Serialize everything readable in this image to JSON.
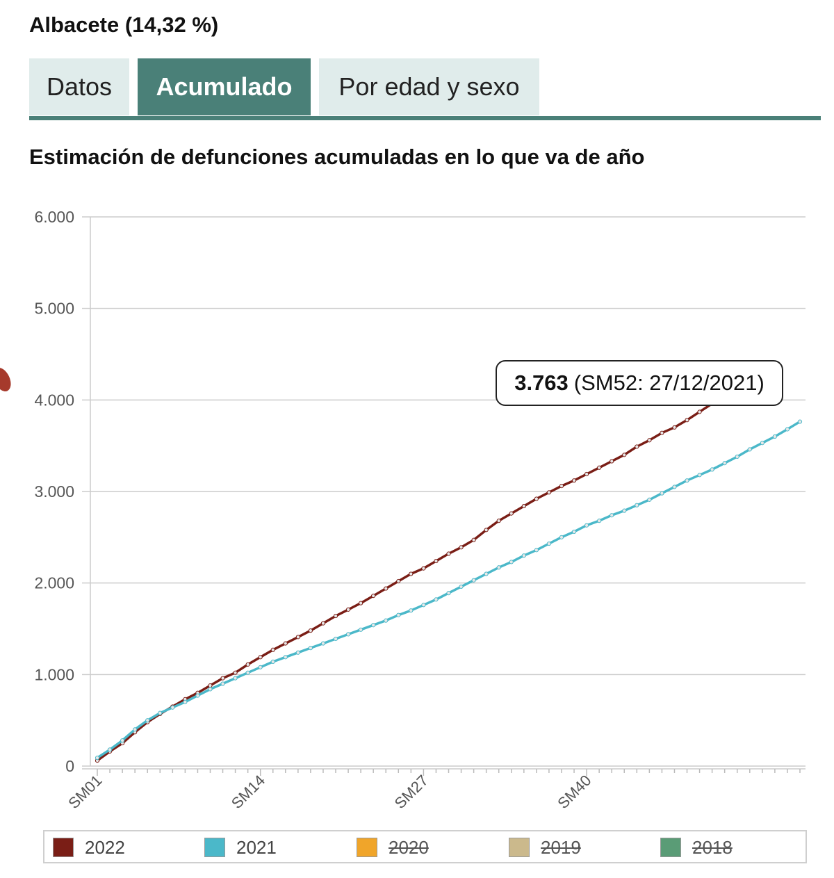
{
  "region_title": "Albacete (14,32 %)",
  "tabs": [
    {
      "label": "Datos",
      "active": false
    },
    {
      "label": "Acumulado",
      "active": true
    },
    {
      "label": "Por edad y sexo",
      "active": false
    }
  ],
  "chart_title": "Estimación de defunciones acumuladas en lo que va de año",
  "tooltip": {
    "value": "3.763",
    "detail": "(SM52: 27/12/2021)"
  },
  "legend": [
    {
      "label": "2022",
      "color": "#7a1e16",
      "visible": true
    },
    {
      "label": "2021",
      "color": "#4bb8c9",
      "visible": true
    },
    {
      "label": "2020",
      "color": "#f0a52a",
      "visible": false
    },
    {
      "label": "2019",
      "color": "#cbb98c",
      "visible": false
    },
    {
      "label": "2018",
      "color": "#5a9c76",
      "visible": false
    }
  ],
  "chart_data": {
    "type": "line",
    "title": "Estimación de defunciones acumuladas en lo que va de año",
    "x_tick_labels": [
      "SM01",
      "SM14",
      "SM27",
      "SM40"
    ],
    "y_tick_labels": [
      "0",
      "1.000",
      "2.000",
      "3.000",
      "4.000",
      "5.000",
      "6.000"
    ],
    "ylim": [
      0,
      6000
    ],
    "grid": true,
    "legend_position": "bottom",
    "series": [
      {
        "name": "2022",
        "color": "#7a1e16",
        "values": [
          60,
          160,
          250,
          370,
          480,
          570,
          650,
          730,
          800,
          880,
          960,
          1020,
          1110,
          1190,
          1270,
          1340,
          1410,
          1480,
          1560,
          1640,
          1710,
          1780,
          1860,
          1940,
          2020,
          2100,
          2160,
          2240,
          2320,
          2390,
          2470,
          2580,
          2680,
          2760,
          2840,
          2920,
          2990,
          3060,
          3120,
          3190,
          3260,
          3330,
          3400,
          3490,
          3560,
          3640,
          3700,
          3780,
          3870,
          3960,
          4050,
          4140,
          4220,
          4300
        ]
      },
      {
        "name": "2021",
        "color": "#4bb8c9",
        "values": [
          90,
          180,
          280,
          400,
          500,
          580,
          640,
          700,
          770,
          840,
          900,
          960,
          1020,
          1080,
          1140,
          1190,
          1240,
          1290,
          1340,
          1390,
          1440,
          1490,
          1540,
          1590,
          1650,
          1700,
          1760,
          1820,
          1890,
          1960,
          2030,
          2100,
          2170,
          2230,
          2300,
          2360,
          2430,
          2500,
          2560,
          2630,
          2680,
          2740,
          2790,
          2850,
          2910,
          2980,
          3050,
          3120,
          3180,
          3240,
          3310,
          3380,
          3460,
          3530,
          3600,
          3680,
          3763
        ]
      }
    ]
  }
}
